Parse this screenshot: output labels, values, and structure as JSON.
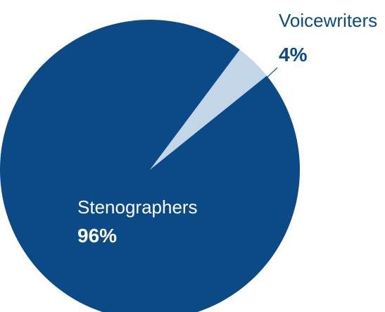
{
  "chart_data": {
    "type": "pie",
    "slices": [
      {
        "label": "Stenographers",
        "value": 96,
        "value_label": "96%",
        "color": "#0b4a86"
      },
      {
        "label": "Voicewriters",
        "value": 4,
        "value_label": "4%",
        "color": "#c2d6e8"
      }
    ],
    "label_colors": {
      "Stenographers": "#ffffff",
      "Voicewriters": "#0b4a86"
    },
    "leader_line_color": "#0b4a86"
  }
}
